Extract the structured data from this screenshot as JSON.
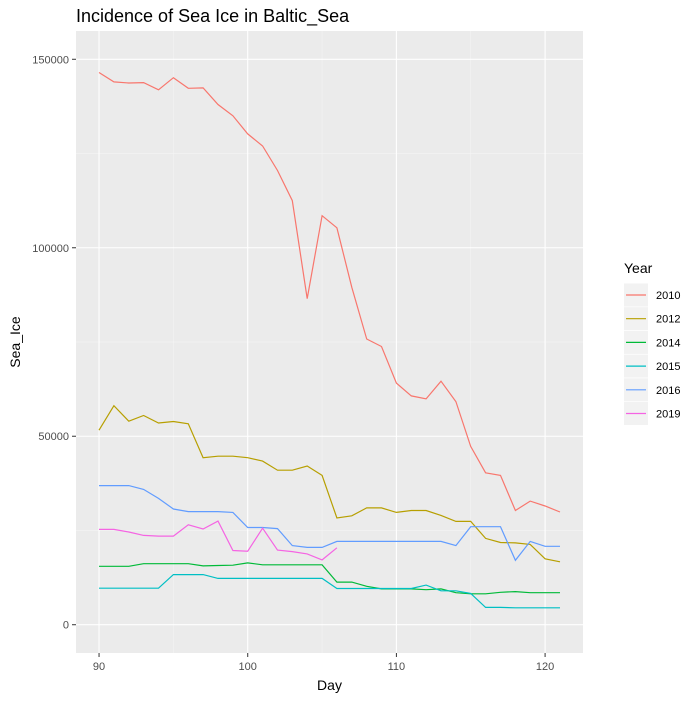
{
  "chart_data": {
    "type": "line",
    "title": "Incidence of Sea Ice in Baltic_Sea",
    "xlabel": "Day",
    "ylabel": "Sea_Ice",
    "xlim": [
      88.45,
      122.55
    ],
    "ylim": [
      -7500,
      157500
    ],
    "x_ticks": [
      90,
      100,
      110,
      120
    ],
    "x_tick_labels": [
      "90",
      "100",
      "110",
      "120"
    ],
    "y_ticks": [
      0,
      50000,
      100000,
      150000
    ],
    "y_tick_labels": [
      "0",
      "50000",
      "100000",
      "150000"
    ],
    "grid": true,
    "legend": {
      "title": "Year",
      "position": "right"
    },
    "series": [
      {
        "name": "2010",
        "color": "#F8766D",
        "x": [
          90,
          91,
          92,
          93,
          94,
          95,
          96,
          97,
          98,
          99,
          100,
          101,
          102,
          103,
          104,
          105,
          106,
          107,
          108,
          109,
          110,
          111,
          112,
          113,
          114,
          115,
          116,
          117,
          118,
          119,
          120,
          121
        ],
        "values": [
          146500,
          144000,
          143700,
          143800,
          141900,
          145100,
          142300,
          142400,
          138000,
          135000,
          130200,
          127000,
          120500,
          112500,
          86500,
          108500,
          105300,
          89500,
          75800,
          73800,
          64100,
          60700,
          59900,
          64600,
          59200,
          47300,
          40300,
          39600,
          30300,
          32800,
          31500,
          29900
        ]
      },
      {
        "name": "2012",
        "color": "#B79F00",
        "x": [
          90,
          91,
          92,
          93,
          94,
          95,
          96,
          97,
          98,
          99,
          100,
          101,
          102,
          103,
          104,
          105,
          106,
          107,
          108,
          109,
          110,
          111,
          112,
          113,
          114,
          115,
          116,
          117,
          118,
          119,
          120,
          121
        ],
        "values": [
          51600,
          58100,
          54000,
          55500,
          53500,
          53900,
          53300,
          44300,
          44700,
          44700,
          44300,
          43400,
          41000,
          41000,
          42100,
          39600,
          28300,
          28900,
          31000,
          31000,
          29800,
          30300,
          30300,
          29000,
          27400,
          27400,
          22900,
          21800,
          21700,
          21300,
          17500,
          16700
        ]
      },
      {
        "name": "2014",
        "color": "#00BA38",
        "x": [
          90,
          91,
          92,
          93,
          94,
          95,
          96,
          97,
          98,
          99,
          100,
          101,
          102,
          103,
          104,
          105,
          106,
          107,
          108,
          109,
          110,
          111,
          112,
          113,
          114,
          115,
          116,
          117,
          118,
          119,
          120,
          121
        ],
        "values": [
          15500,
          15500,
          15500,
          16200,
          16200,
          16200,
          16200,
          15600,
          15700,
          15800,
          16400,
          15900,
          15900,
          15900,
          15900,
          15900,
          11300,
          11300,
          10200,
          9500,
          9500,
          9500,
          9300,
          9500,
          8500,
          8200,
          8200,
          8600,
          8800,
          8500,
          8500,
          8500
        ]
      },
      {
        "name": "2015",
        "color": "#00BFC4",
        "x": [
          90,
          91,
          92,
          93,
          94,
          95,
          96,
          97,
          98,
          99,
          100,
          101,
          102,
          103,
          104,
          105,
          106,
          107,
          108,
          109,
          110,
          111,
          112,
          113,
          114,
          115,
          116,
          117,
          118,
          119,
          120,
          121
        ],
        "values": [
          9700,
          9700,
          9700,
          9700,
          9700,
          13300,
          13300,
          13300,
          12300,
          12300,
          12300,
          12300,
          12300,
          12300,
          12300,
          12300,
          9600,
          9600,
          9600,
          9600,
          9600,
          9600,
          10500,
          9000,
          9000,
          8300,
          4600,
          4600,
          4500,
          4500,
          4500,
          4500
        ]
      },
      {
        "name": "2016",
        "color": "#619CFF",
        "x": [
          90,
          91,
          92,
          93,
          94,
          95,
          96,
          97,
          98,
          99,
          100,
          101,
          102,
          103,
          104,
          105,
          106,
          107,
          108,
          109,
          110,
          111,
          112,
          113,
          114,
          115,
          116,
          117,
          118,
          119,
          120,
          121
        ],
        "values": [
          36900,
          36900,
          36900,
          35900,
          33500,
          30700,
          30000,
          30000,
          30000,
          29800,
          25800,
          25800,
          25500,
          21000,
          20500,
          20500,
          22100,
          22100,
          22100,
          22100,
          22100,
          22100,
          22100,
          22100,
          21000,
          26000,
          26000,
          26000,
          17100,
          22100,
          20800,
          20800
        ]
      },
      {
        "name": "2019",
        "color": "#F564E3",
        "x": [
          90,
          91,
          92,
          93,
          94,
          95,
          96,
          97,
          98,
          99,
          100,
          101,
          102,
          103,
          104,
          105,
          106
        ],
        "values": [
          25300,
          25300,
          24600,
          23700,
          23500,
          23500,
          26500,
          25400,
          27500,
          19700,
          19500,
          25600,
          19800,
          19400,
          18800,
          17200,
          20400
        ]
      }
    ]
  }
}
